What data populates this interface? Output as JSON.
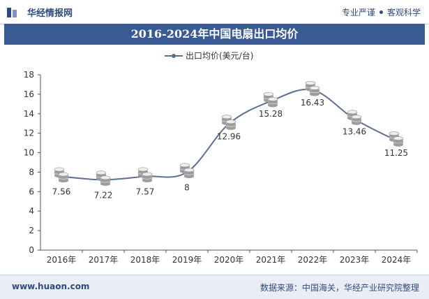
{
  "header": {
    "brand": "华经情报网",
    "tagline_left": "专业严谨",
    "tagline_right": "客观科学"
  },
  "footer": {
    "website": "www.huaon.com",
    "source": "数据来源：中国海关，华经产业研究院整理"
  },
  "colors": {
    "title_band": "#3a5a95",
    "line": "#5b6f96",
    "footer_bg": "#e9eef6"
  },
  "chart_data": {
    "type": "line",
    "title": "2016-2024年中国电扇出口均价",
    "categories": [
      "2016年",
      "2017年",
      "2018年",
      "2019年",
      "2020年",
      "2021年",
      "2022年",
      "2023年",
      "2024年"
    ],
    "series": [
      {
        "name": "出口均价(美元/台)",
        "values": [
          7.56,
          7.22,
          7.57,
          8,
          12.96,
          15.28,
          16.43,
          13.46,
          11.25
        ]
      }
    ],
    "data_labels": [
      "7.56",
      "7.22",
      "7.57",
      "8",
      "12.96",
      "15.28",
      "16.43",
      "13.46",
      "11.25"
    ],
    "yticks": [
      0,
      2,
      4,
      6,
      8,
      10,
      12,
      14,
      16,
      18
    ],
    "ylim": [
      0,
      18
    ],
    "legend_position": "top",
    "marker_icon": "coin-stack-icon",
    "grid": false
  }
}
